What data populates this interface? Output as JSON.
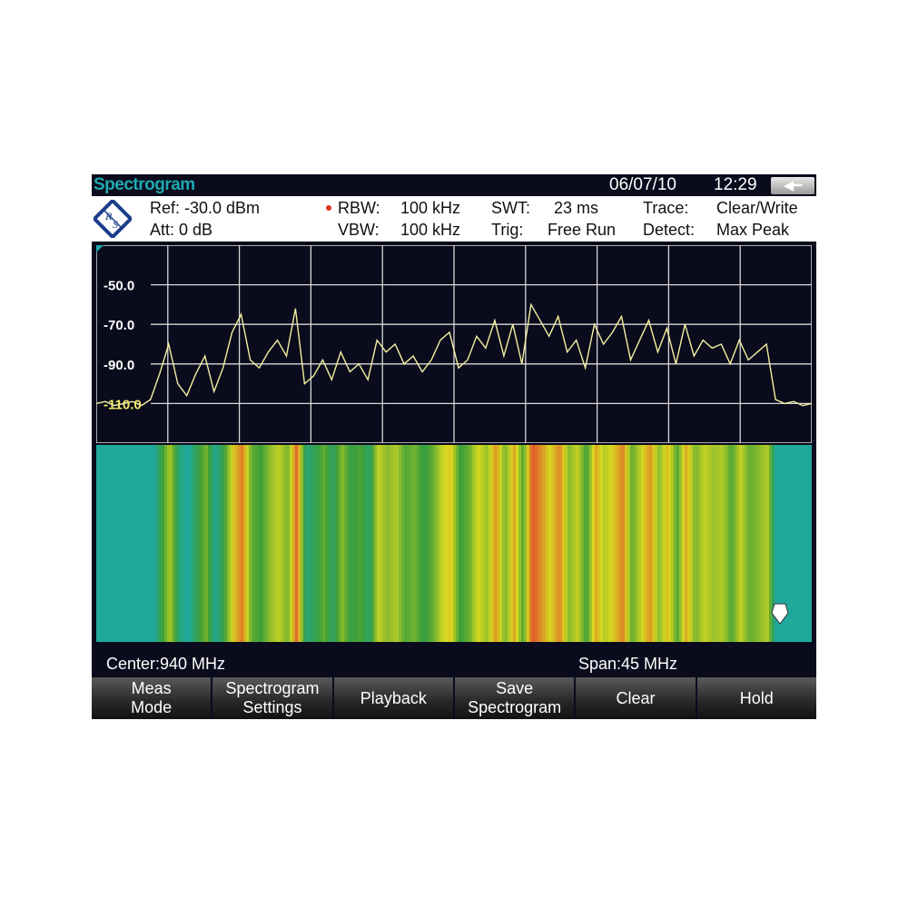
{
  "title_bar": {
    "title": "Spectrogram",
    "date": "06/07/10",
    "time": "12:29",
    "back_icon": "back-arrow-icon"
  },
  "info": {
    "ref": "Ref:  -30.0 dBm",
    "att": "Att:  0 dB",
    "rbw_label": "RBW:",
    "rbw_value": "100 kHz",
    "vbw_label": "VBW:",
    "vbw_value": "100 kHz",
    "swt_label": "SWT:",
    "swt_value": "23 ms",
    "trig_label": "Trig:",
    "trig_value": "Free Run",
    "trace_label": "Trace:",
    "trace_value": "Clear/Write",
    "detect_label": "Detect:",
    "detect_value": "Max Peak",
    "rbw_indicator_color": "#e03020"
  },
  "chart_data": {
    "type": "line",
    "y_tick_labels": [
      "-50.0",
      "-70.0",
      "-90.0",
      "-110.0"
    ],
    "y_ticks": [
      -50,
      -70,
      -90,
      -110
    ],
    "ylim": [
      -130,
      -30
    ],
    "xlim_mhz": [
      917.5,
      962.5
    ],
    "grid": true,
    "x_divisions": 10,
    "trace_color": "#f4f0a0",
    "values_dbm": [
      -110,
      -109,
      -111,
      -110,
      -109,
      -111,
      -108,
      -95,
      -80,
      -100,
      -106,
      -95,
      -86,
      -104,
      -92,
      -74,
      -65,
      -88,
      -92,
      -84,
      -78,
      -86,
      -62,
      -100,
      -96,
      -88,
      -98,
      -84,
      -94,
      -90,
      -98,
      -78,
      -84,
      -80,
      -90,
      -86,
      -94,
      -88,
      -78,
      -74,
      -92,
      -88,
      -76,
      -82,
      -68,
      -86,
      -70,
      -90,
      -60,
      -68,
      -76,
      -66,
      -84,
      -78,
      -92,
      -70,
      -80,
      -74,
      -66,
      -88,
      -78,
      -68,
      -84,
      -72,
      -90,
      -70,
      -86,
      -78,
      -82,
      -80,
      -90,
      -78,
      -88,
      -84,
      -80,
      -108,
      -110,
      -109,
      -111,
      -110
    ]
  },
  "spectrogram": {
    "colors": {
      "low": "#1fa89c",
      "mid": "#3c9f3a",
      "high": "#d8d820",
      "peak": "#e0622a"
    },
    "marker_icon": "marker-pentagon-icon"
  },
  "footer": {
    "center": "Center:940 MHz",
    "span": "Span:45 MHz"
  },
  "softkeys": [
    {
      "line1": "Meas",
      "line2": "Mode"
    },
    {
      "line1": "Spectrogram",
      "line2": "Settings"
    },
    {
      "line1": "Playback",
      "line2": ""
    },
    {
      "line1": "Save",
      "line2": "Spectrogram"
    },
    {
      "line1": "Clear",
      "line2": ""
    },
    {
      "line1": "Hold",
      "line2": ""
    }
  ]
}
